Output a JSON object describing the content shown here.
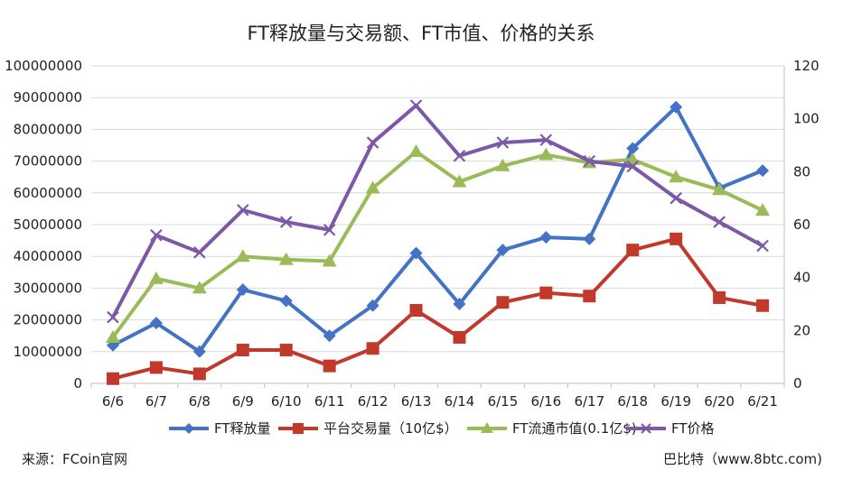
{
  "chart_data": {
    "type": "line",
    "title": "FT释放量与交易额、FT市值、价格的关系",
    "categories": [
      "6/6",
      "6/7",
      "6/8",
      "6/9",
      "6/10",
      "6/11",
      "6/12",
      "6/13",
      "6/14",
      "6/15",
      "6/16",
      "6/17",
      "6/18",
      "6/19",
      "6/20",
      "6/21"
    ],
    "left_axis": {
      "range": [
        0,
        100000000
      ],
      "ticks": [
        "0",
        "10000000",
        "20000000",
        "30000000",
        "40000000",
        "50000000",
        "60000000",
        "70000000",
        "80000000",
        "90000000",
        "100000000"
      ]
    },
    "right_axis": {
      "range": [
        0,
        120
      ],
      "ticks": [
        "0",
        "20",
        "40",
        "60",
        "80",
        "100",
        "120"
      ]
    },
    "grid": "horizontal",
    "legend_position": "bottom",
    "series": [
      {
        "name": "FT释放量",
        "axis": "left",
        "color": "#4472C4",
        "marker": "diamond",
        "values": [
          12000000,
          19000000,
          10000000,
          29500000,
          26000000,
          15000000,
          24500000,
          41000000,
          25000000,
          42000000,
          46000000,
          45500000,
          74000000,
          87000000,
          61500000,
          67000000
        ]
      },
      {
        "name": "平台交易量（10亿$）",
        "axis": "left",
        "color": "#C0392B",
        "marker": "square",
        "values": [
          1500000,
          5000000,
          3000000,
          10500000,
          10500000,
          5500000,
          11000000,
          23000000,
          14500000,
          25500000,
          28500000,
          27500000,
          42000000,
          45500000,
          27000000,
          24500000
        ]
      },
      {
        "name": "FT流通市值(0.1亿$)",
        "axis": "left",
        "color": "#9BBB59",
        "marker": "triangle",
        "values": [
          14500000,
          33000000,
          30000000,
          40000000,
          39000000,
          38500000,
          61500000,
          73000000,
          63500000,
          68500000,
          72000000,
          69500000,
          70500000,
          65000000,
          61000000,
          54500000
        ]
      },
      {
        "name": "FT价格",
        "axis": "right",
        "color": "#7D58A8",
        "marker": "x",
        "values": [
          25,
          56,
          49.5,
          65.5,
          61,
          58,
          91,
          105,
          86,
          91,
          92,
          84,
          82,
          70,
          61,
          52
        ]
      }
    ]
  },
  "footer": {
    "source": "来源：FCoin官网",
    "credit": "巴比特（www.8btc.com)"
  }
}
